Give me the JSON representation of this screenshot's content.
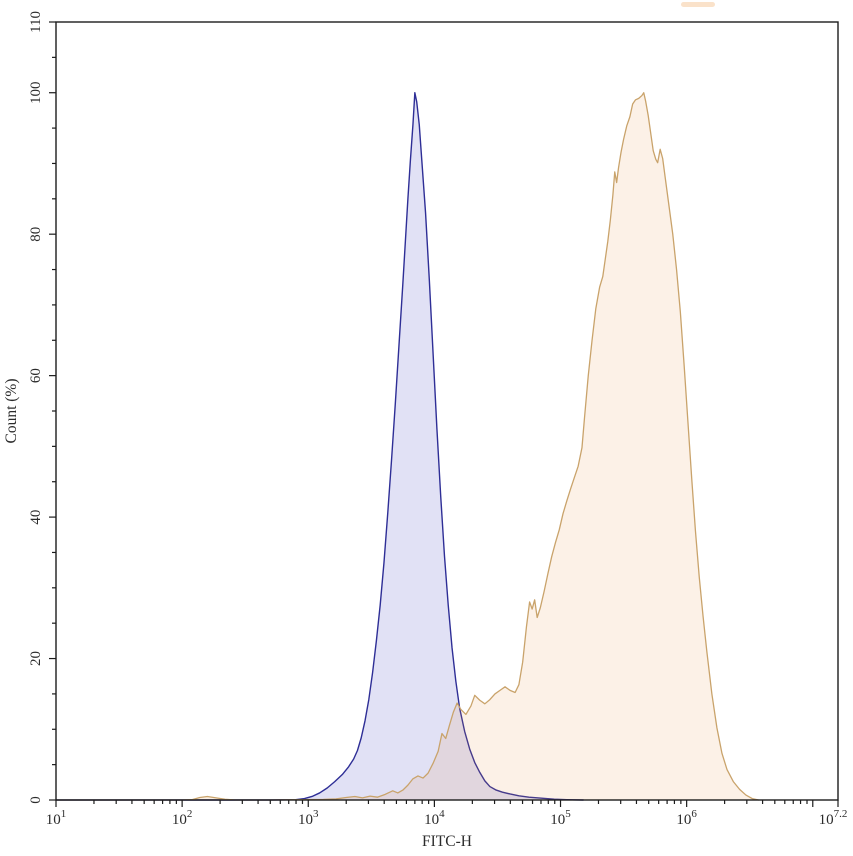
{
  "page": {
    "background_color": "#ffffff"
  },
  "chart_data": {
    "type": "area",
    "subtype": "flow-cytometry-histogram-overlay",
    "title": "",
    "xlabel": "FITC-H",
    "ylabel": "Count (%)",
    "x_scale": "log10",
    "xlim": [
      1.0,
      7.2
    ],
    "ylim": [
      0,
      110
    ],
    "grid": false,
    "legend_position": "none",
    "axis_color": "#1c1c1c",
    "label_color": "#2b2b2b",
    "x_major_ticks": [
      {
        "log": 1,
        "label_base": "10",
        "label_exp": "1"
      },
      {
        "log": 2,
        "label_base": "10",
        "label_exp": "2"
      },
      {
        "log": 3,
        "label_base": "10",
        "label_exp": "3"
      },
      {
        "log": 4,
        "label_base": "10",
        "label_exp": "4"
      },
      {
        "log": 5,
        "label_base": "10",
        "label_exp": "5"
      },
      {
        "log": 6,
        "label_base": "10",
        "label_exp": "6"
      },
      {
        "log": 7,
        "label_base": "",
        "label_exp": ""
      },
      {
        "log": 7.2,
        "label_base": "10",
        "label_exp": "7.2"
      }
    ],
    "x_minor_tick_multiples": [
      2,
      3,
      4,
      5,
      6,
      7,
      8,
      9
    ],
    "y_major_ticks": [
      {
        "value": 0,
        "label": "0"
      },
      {
        "value": 20,
        "label": "20"
      },
      {
        "value": 40,
        "label": "40"
      },
      {
        "value": 60,
        "label": "60"
      },
      {
        "value": 80,
        "label": "80"
      },
      {
        "value": 100,
        "label": "100"
      },
      {
        "value": 110,
        "label": "110"
      }
    ],
    "y_minor_step": 5,
    "series": [
      {
        "name": "blue-population",
        "peak_x_log": 3.845,
        "peak_y_percent": 100,
        "stroke": "#2e2e96",
        "fill": "rgba(70,70,195,0.16)",
        "stroke_width": 1.4,
        "points": [
          [
            1.0,
            0
          ],
          [
            1.5,
            0
          ],
          [
            2.0,
            0
          ],
          [
            2.4,
            0
          ],
          [
            2.7,
            0
          ],
          [
            2.9,
            0.05
          ],
          [
            2.97,
            0.2
          ],
          [
            3.03,
            0.5
          ],
          [
            3.09,
            1.0
          ],
          [
            3.15,
            1.7
          ],
          [
            3.21,
            2.6
          ],
          [
            3.27,
            3.6
          ],
          [
            3.32,
            4.7
          ],
          [
            3.36,
            5.8
          ],
          [
            3.39,
            7.0
          ],
          [
            3.42,
            8.8
          ],
          [
            3.45,
            11.2
          ],
          [
            3.48,
            14.2
          ],
          [
            3.51,
            18.0
          ],
          [
            3.54,
            22.5
          ],
          [
            3.57,
            27.5
          ],
          [
            3.6,
            33.5
          ],
          [
            3.63,
            40.5
          ],
          [
            3.66,
            48.0
          ],
          [
            3.69,
            56.0
          ],
          [
            3.72,
            64.5
          ],
          [
            3.75,
            73.0
          ],
          [
            3.77,
            79.0
          ],
          [
            3.79,
            85.0
          ],
          [
            3.81,
            90.5
          ],
          [
            3.83,
            95.5
          ],
          [
            3.845,
            100
          ],
          [
            3.86,
            98.7
          ],
          [
            3.88,
            95.5
          ],
          [
            3.9,
            90.5
          ],
          [
            3.93,
            83.0
          ],
          [
            3.96,
            73.5
          ],
          [
            3.99,
            63.0
          ],
          [
            4.02,
            52.5
          ],
          [
            4.05,
            43.0
          ],
          [
            4.08,
            34.5
          ],
          [
            4.11,
            27.5
          ],
          [
            4.14,
            21.5
          ],
          [
            4.17,
            16.8
          ],
          [
            4.2,
            13.0
          ],
          [
            4.24,
            9.7
          ],
          [
            4.28,
            7.2
          ],
          [
            4.32,
            5.3
          ],
          [
            4.36,
            3.9
          ],
          [
            4.4,
            2.7
          ],
          [
            4.44,
            1.9
          ],
          [
            4.49,
            1.4
          ],
          [
            4.54,
            1.1
          ],
          [
            4.6,
            0.85
          ],
          [
            4.67,
            0.6
          ],
          [
            4.75,
            0.4
          ],
          [
            4.85,
            0.25
          ],
          [
            4.95,
            0.12
          ],
          [
            5.05,
            0.05
          ],
          [
            5.18,
            0
          ]
        ]
      },
      {
        "name": "orange-population",
        "peak_x_log": 5.66,
        "peak_y_percent": 100,
        "stroke": "#c9a36b",
        "fill": "rgba(235,150,70,0.13)",
        "stroke_width": 1.3,
        "points": [
          [
            1.0,
            0
          ],
          [
            1.6,
            0
          ],
          [
            2.0,
            0
          ],
          [
            2.08,
            0.05
          ],
          [
            2.14,
            0.35
          ],
          [
            2.2,
            0.5
          ],
          [
            2.27,
            0.3
          ],
          [
            2.34,
            0.1
          ],
          [
            2.42,
            0
          ],
          [
            2.7,
            0
          ],
          [
            2.95,
            0.05
          ],
          [
            3.12,
            0.08
          ],
          [
            3.22,
            0.15
          ],
          [
            3.3,
            0.35
          ],
          [
            3.37,
            0.5
          ],
          [
            3.43,
            0.3
          ],
          [
            3.49,
            0.55
          ],
          [
            3.55,
            0.4
          ],
          [
            3.61,
            0.8
          ],
          [
            3.67,
            1.3
          ],
          [
            3.71,
            1.0
          ],
          [
            3.75,
            1.4
          ],
          [
            3.79,
            2.1
          ],
          [
            3.83,
            3.0
          ],
          [
            3.87,
            3.4
          ],
          [
            3.91,
            3.1
          ],
          [
            3.95,
            3.8
          ],
          [
            3.99,
            5.2
          ],
          [
            4.03,
            6.9
          ],
          [
            4.06,
            9.4
          ],
          [
            4.09,
            8.7
          ],
          [
            4.12,
            10.6
          ],
          [
            4.15,
            12.4
          ],
          [
            4.18,
            13.7
          ],
          [
            4.21,
            12.8
          ],
          [
            4.25,
            12.1
          ],
          [
            4.29,
            13.3
          ],
          [
            4.32,
            14.8
          ],
          [
            4.36,
            14.1
          ],
          [
            4.4,
            13.6
          ],
          [
            4.44,
            14.2
          ],
          [
            4.48,
            15.0
          ],
          [
            4.52,
            15.5
          ],
          [
            4.56,
            16.0
          ],
          [
            4.6,
            15.5
          ],
          [
            4.64,
            15.2
          ],
          [
            4.67,
            16.3
          ],
          [
            4.7,
            19.5
          ],
          [
            4.73,
            24.5
          ],
          [
            4.755,
            28.0
          ],
          [
            4.775,
            27.0
          ],
          [
            4.795,
            28.3
          ],
          [
            4.815,
            25.8
          ],
          [
            4.84,
            27.2
          ],
          [
            4.87,
            29.5
          ],
          [
            4.9,
            32.0
          ],
          [
            4.93,
            34.4
          ],
          [
            4.96,
            36.4
          ],
          [
            4.99,
            38.2
          ],
          [
            5.02,
            40.5
          ],
          [
            5.05,
            42.3
          ],
          [
            5.08,
            44.0
          ],
          [
            5.11,
            45.6
          ],
          [
            5.14,
            47.2
          ],
          [
            5.17,
            49.8
          ],
          [
            5.19,
            54.0
          ],
          [
            5.22,
            60.0
          ],
          [
            5.25,
            65.0
          ],
          [
            5.28,
            69.5
          ],
          [
            5.31,
            72.5
          ],
          [
            5.335,
            74.0
          ],
          [
            5.355,
            76.5
          ],
          [
            5.375,
            79.0
          ],
          [
            5.395,
            82.0
          ],
          [
            5.415,
            85.5
          ],
          [
            5.43,
            88.8
          ],
          [
            5.445,
            87.3
          ],
          [
            5.46,
            89.4
          ],
          [
            5.48,
            91.6
          ],
          [
            5.5,
            93.4
          ],
          [
            5.525,
            95.3
          ],
          [
            5.55,
            96.6
          ],
          [
            5.572,
            98.4
          ],
          [
            5.595,
            99.0
          ],
          [
            5.62,
            99.2
          ],
          [
            5.645,
            99.6
          ],
          [
            5.66,
            100
          ],
          [
            5.675,
            98.8
          ],
          [
            5.695,
            96.8
          ],
          [
            5.715,
            94.3
          ],
          [
            5.735,
            91.8
          ],
          [
            5.755,
            90.6
          ],
          [
            5.77,
            90.1
          ],
          [
            5.79,
            92.0
          ],
          [
            5.81,
            90.7
          ],
          [
            5.83,
            88.0
          ],
          [
            5.86,
            84.0
          ],
          [
            5.89,
            80.0
          ],
          [
            5.92,
            75.0
          ],
          [
            5.95,
            69.0
          ],
          [
            5.98,
            61.5
          ],
          [
            6.01,
            53.5
          ],
          [
            6.04,
            45.5
          ],
          [
            6.07,
            38.0
          ],
          [
            6.1,
            31.5
          ],
          [
            6.13,
            26.0
          ],
          [
            6.16,
            21.0
          ],
          [
            6.2,
            15.0
          ],
          [
            6.24,
            10.2
          ],
          [
            6.28,
            6.6
          ],
          [
            6.32,
            4.3
          ],
          [
            6.37,
            2.6
          ],
          [
            6.42,
            1.5
          ],
          [
            6.47,
            0.7
          ],
          [
            6.52,
            0.2
          ],
          [
            6.57,
            0
          ]
        ]
      }
    ],
    "artifacts": [
      {
        "name": "top-edge-orange-smudge",
        "color": "#f6cfa6",
        "opacity": 0.6
      }
    ]
  }
}
